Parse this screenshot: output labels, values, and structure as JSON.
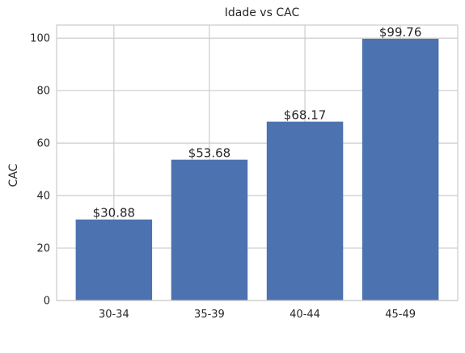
{
  "chart_data": {
    "type": "bar",
    "title": "Idade vs CAC",
    "xlabel": "",
    "ylabel": "CAC",
    "categories": [
      "30-34",
      "35-39",
      "40-44",
      "45-49"
    ],
    "values": [
      30.88,
      53.68,
      68.17,
      99.76
    ],
    "data_labels": [
      "$30.88",
      "$53.68",
      "$68.17",
      "$99.76"
    ],
    "ylim": [
      0,
      105
    ],
    "yticks": [
      0,
      20,
      40,
      60,
      80,
      100
    ],
    "grid": true,
    "bar_color": "#4c72b0",
    "grid_color": "#cccccc",
    "spine_color": "#cccccc"
  }
}
